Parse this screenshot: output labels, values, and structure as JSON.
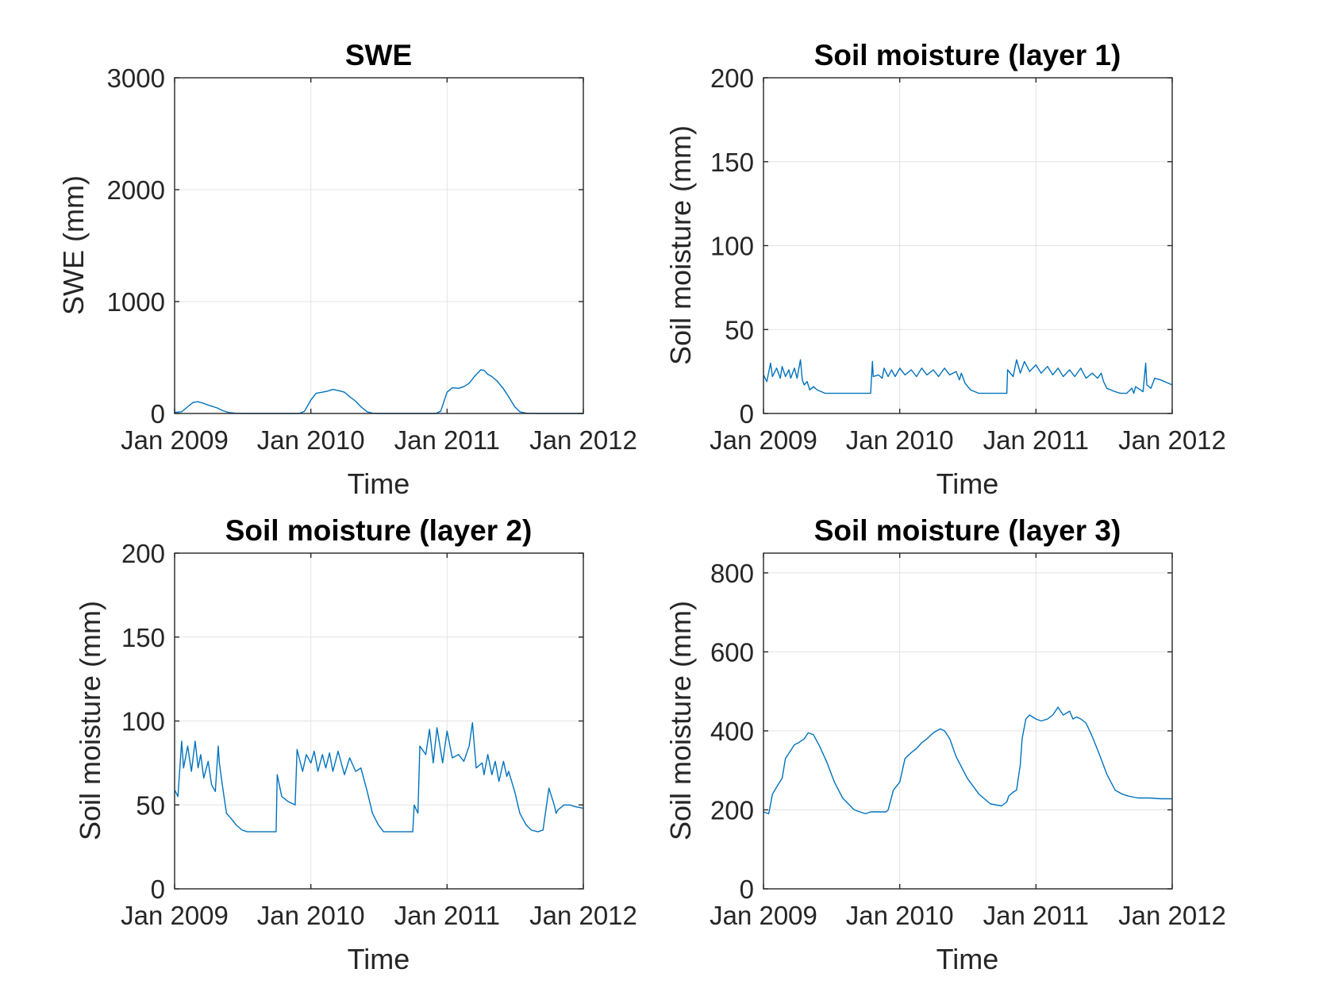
{
  "figure": {
    "background": "#ffffff",
    "line_color": "#0072BD"
  },
  "chart_data": [
    {
      "id": "swe",
      "type": "line",
      "title": "SWE",
      "xlabel": "Time",
      "ylabel": "SWE (mm)",
      "x_type": "date",
      "xlim": [
        "2009-01-01",
        "2012-01-01"
      ],
      "ylim": [
        0,
        3000
      ],
      "xticks": [
        "2009-01-01",
        "2010-01-01",
        "2011-01-01",
        "2012-01-01"
      ],
      "xtick_labels": [
        "Jan 2009",
        "Jan 2010",
        "Jan 2011",
        "Jan 2012"
      ],
      "yticks": [
        0,
        1000,
        2000,
        3000
      ],
      "ytick_labels": [
        "0",
        "1000",
        "2000",
        "3000"
      ],
      "grid": true,
      "series": [
        {
          "color": "#0072BD",
          "x": [
            "2009-01-01",
            "2009-01-20",
            "2009-02-05",
            "2009-02-20",
            "2009-03-05",
            "2009-03-20",
            "2009-04-05",
            "2009-04-25",
            "2009-05-10",
            "2009-05-25",
            "2009-06-10",
            "2009-07-01",
            "2009-09-01",
            "2009-11-01",
            "2009-12-01",
            "2009-12-15",
            "2010-01-01",
            "2010-01-15",
            "2010-02-01",
            "2010-02-15",
            "2010-03-01",
            "2010-03-15",
            "2010-04-01",
            "2010-04-15",
            "2010-05-01",
            "2010-05-15",
            "2010-06-01",
            "2010-06-15",
            "2010-07-01",
            "2010-09-01",
            "2010-11-01",
            "2010-12-01",
            "2010-12-15",
            "2011-01-01",
            "2011-01-15",
            "2011-02-01",
            "2011-02-15",
            "2011-03-01",
            "2011-03-15",
            "2011-04-01",
            "2011-04-10",
            "2011-04-20",
            "2011-05-01",
            "2011-05-15",
            "2011-06-01",
            "2011-06-15",
            "2011-07-01",
            "2011-07-15",
            "2011-08-01",
            "2011-09-01",
            "2011-11-01",
            "2012-01-01"
          ],
          "y": [
            10,
            15,
            60,
            100,
            105,
            90,
            70,
            50,
            25,
            10,
            3,
            0,
            0,
            0,
            0,
            20,
            120,
            180,
            190,
            200,
            215,
            205,
            190,
            150,
            110,
            60,
            15,
            3,
            0,
            0,
            0,
            0,
            20,
            190,
            230,
            225,
            240,
            270,
            330,
            390,
            385,
            350,
            330,
            290,
            220,
            150,
            60,
            15,
            3,
            0,
            0,
            0
          ]
        }
      ]
    },
    {
      "id": "sm1",
      "type": "line",
      "title": "Soil moisture (layer 1)",
      "xlabel": "Time",
      "ylabel": "Soil moisture (mm)",
      "x_type": "date",
      "xlim": [
        "2009-01-01",
        "2012-01-01"
      ],
      "ylim": [
        0,
        200
      ],
      "xticks": [
        "2009-01-01",
        "2010-01-01",
        "2011-01-01",
        "2012-01-01"
      ],
      "xtick_labels": [
        "Jan 2009",
        "Jan 2010",
        "Jan 2011",
        "Jan 2012"
      ],
      "yticks": [
        0,
        50,
        100,
        150,
        200
      ],
      "ytick_labels": [
        "0",
        "50",
        "100",
        "150",
        "200"
      ],
      "grid": true,
      "series": [
        {
          "color": "#0072BD",
          "x": [
            "2009-01-01",
            "2009-01-10",
            "2009-01-20",
            "2009-01-25",
            "2009-02-05",
            "2009-02-15",
            "2009-02-20",
            "2009-03-01",
            "2009-03-10",
            "2009-03-15",
            "2009-03-25",
            "2009-04-01",
            "2009-04-10",
            "2009-04-15",
            "2009-04-20",
            "2009-04-28",
            "2009-05-05",
            "2009-05-15",
            "2009-05-25",
            "2009-06-05",
            "2009-06-15",
            "2009-07-01",
            "2009-07-15",
            "2009-08-01",
            "2009-09-01",
            "2009-10-01",
            "2009-10-15",
            "2009-10-20",
            "2009-10-22",
            "2009-11-05",
            "2009-11-15",
            "2009-11-20",
            "2009-12-01",
            "2009-12-10",
            "2009-12-20",
            "2010-01-01",
            "2010-01-15",
            "2010-02-01",
            "2010-02-15",
            "2010-03-01",
            "2010-03-15",
            "2010-04-01",
            "2010-04-15",
            "2010-05-01",
            "2010-05-15",
            "2010-06-01",
            "2010-06-10",
            "2010-06-15",
            "2010-06-25",
            "2010-07-10",
            "2010-08-01",
            "2010-09-01",
            "2010-10-01",
            "2010-10-15",
            "2010-10-17",
            "2010-11-01",
            "2010-11-10",
            "2010-11-20",
            "2010-12-01",
            "2010-12-15",
            "2011-01-01",
            "2011-01-15",
            "2011-02-01",
            "2011-02-15",
            "2011-03-01",
            "2011-03-15",
            "2011-04-01",
            "2011-04-15",
            "2011-05-01",
            "2011-05-15",
            "2011-06-01",
            "2011-06-15",
            "2011-06-25",
            "2011-07-01",
            "2011-07-10",
            "2011-08-01",
            "2011-08-15",
            "2011-09-01",
            "2011-09-15",
            "2011-09-20",
            "2011-09-25",
            "2011-10-15",
            "2011-10-22",
            "2011-10-25",
            "2011-11-05",
            "2011-11-15",
            "2011-12-01",
            "2012-01-01"
          ],
          "y": [
            23,
            19,
            30,
            22,
            27,
            21,
            28,
            22,
            26,
            21,
            27,
            21,
            32,
            20,
            17,
            19,
            14,
            16,
            14,
            13,
            12,
            12,
            12,
            12,
            12,
            12,
            12,
            31,
            22,
            23,
            21,
            27,
            22,
            26,
            22,
            27,
            23,
            26,
            22,
            27,
            23,
            26,
            22,
            27,
            23,
            25,
            20,
            24,
            18,
            14,
            12,
            12,
            12,
            12,
            26,
            22,
            32,
            24,
            31,
            25,
            29,
            24,
            28,
            23,
            27,
            22,
            26,
            22,
            27,
            21,
            24,
            21,
            24,
            19,
            15,
            13,
            12,
            12,
            15,
            12,
            16,
            13,
            30,
            17,
            15,
            21,
            20,
            17
          ]
        }
      ]
    },
    {
      "id": "sm2",
      "type": "line",
      "title": "Soil moisture (layer 2)",
      "xlabel": "Time",
      "ylabel": "Soil moisture (mm)",
      "x_type": "date",
      "xlim": [
        "2009-01-01",
        "2012-01-01"
      ],
      "ylim": [
        0,
        200
      ],
      "xticks": [
        "2009-01-01",
        "2010-01-01",
        "2011-01-01",
        "2012-01-01"
      ],
      "xtick_labels": [
        "Jan 2009",
        "Jan 2010",
        "Jan 2011",
        "Jan 2012"
      ],
      "yticks": [
        0,
        50,
        100,
        150,
        200
      ],
      "ytick_labels": [
        "0",
        "50",
        "100",
        "150",
        "200"
      ],
      "grid": true,
      "series": [
        {
          "color": "#0072BD",
          "x": [
            "2009-01-01",
            "2009-01-10",
            "2009-01-20",
            "2009-01-25",
            "2009-02-05",
            "2009-02-15",
            "2009-02-25",
            "2009-03-05",
            "2009-03-12",
            "2009-03-20",
            "2009-04-01",
            "2009-04-10",
            "2009-04-20",
            "2009-04-28",
            "2009-05-01",
            "2009-05-10",
            "2009-05-20",
            "2009-06-01",
            "2009-06-15",
            "2009-07-01",
            "2009-07-15",
            "2009-08-01",
            "2009-09-01",
            "2009-09-30",
            "2009-10-03",
            "2009-10-15",
            "2009-11-01",
            "2009-11-20",
            "2009-11-25",
            "2009-12-10",
            "2009-12-20",
            "2010-01-01",
            "2010-01-10",
            "2010-01-20",
            "2010-02-01",
            "2010-02-10",
            "2010-02-20",
            "2010-03-01",
            "2010-03-15",
            "2010-04-01",
            "2010-04-15",
            "2010-05-01",
            "2010-05-15",
            "2010-06-01",
            "2010-06-15",
            "2010-07-01",
            "2010-07-15",
            "2010-08-01",
            "2010-09-01",
            "2010-10-01",
            "2010-10-05",
            "2010-10-15",
            "2010-10-20",
            "2010-11-05",
            "2010-11-15",
            "2010-11-25",
            "2010-12-05",
            "2010-12-20",
            "2011-01-01",
            "2011-01-15",
            "2011-02-01",
            "2011-02-15",
            "2011-03-01",
            "2011-03-10",
            "2011-03-20",
            "2011-04-05",
            "2011-04-10",
            "2011-04-20",
            "2011-05-01",
            "2011-05-10",
            "2011-05-20",
            "2011-06-01",
            "2011-06-10",
            "2011-06-15",
            "2011-07-01",
            "2011-07-15",
            "2011-08-01",
            "2011-08-15",
            "2011-09-01",
            "2011-09-15",
            "2011-10-01",
            "2011-10-15",
            "2011-10-20",
            "2011-10-25",
            "2011-11-10",
            "2011-11-25",
            "2011-12-10",
            "2012-01-01"
          ],
          "y": [
            59,
            55,
            88,
            72,
            85,
            70,
            88,
            72,
            80,
            66,
            76,
            62,
            58,
            85,
            75,
            60,
            45,
            42,
            38,
            35,
            34,
            34,
            34,
            34,
            68,
            55,
            52,
            50,
            83,
            70,
            80,
            75,
            82,
            70,
            80,
            72,
            81,
            70,
            82,
            68,
            78,
            70,
            72,
            58,
            45,
            38,
            34,
            34,
            34,
            34,
            50,
            45,
            85,
            80,
            95,
            75,
            96,
            75,
            94,
            78,
            80,
            76,
            85,
            99,
            72,
            75,
            68,
            80,
            68,
            76,
            64,
            76,
            67,
            70,
            58,
            45,
            38,
            35,
            34,
            35,
            60,
            50,
            45,
            47,
            50,
            50,
            49,
            48
          ]
        }
      ]
    },
    {
      "id": "sm3",
      "type": "line",
      "title": "Soil moisture (layer 3)",
      "xlabel": "Time",
      "ylabel": "Soil moisture (mm)",
      "x_type": "date",
      "xlim": [
        "2009-01-01",
        "2012-01-01"
      ],
      "ylim": [
        0,
        850
      ],
      "xticks": [
        "2009-01-01",
        "2010-01-01",
        "2011-01-01",
        "2012-01-01"
      ],
      "xtick_labels": [
        "Jan 2009",
        "Jan 2010",
        "Jan 2011",
        "Jan 2012"
      ],
      "yticks": [
        0,
        200,
        400,
        600,
        800
      ],
      "ytick_labels": [
        "0",
        "200",
        "400",
        "600",
        "800"
      ],
      "grid": true,
      "series": [
        {
          "color": "#0072BD",
          "x": [
            "2009-01-01",
            "2009-01-15",
            "2009-01-25",
            "2009-02-10",
            "2009-02-20",
            "2009-03-01",
            "2009-03-15",
            "2009-03-25",
            "2009-04-05",
            "2009-04-20",
            "2009-05-01",
            "2009-05-15",
            "2009-06-01",
            "2009-06-20",
            "2009-07-10",
            "2009-08-01",
            "2009-09-01",
            "2009-10-01",
            "2009-10-15",
            "2009-11-01",
            "2009-11-25",
            "2009-12-01",
            "2009-12-15",
            "2010-01-01",
            "2010-01-15",
            "2010-02-01",
            "2010-02-15",
            "2010-03-01",
            "2010-03-15",
            "2010-04-01",
            "2010-04-10",
            "2010-04-20",
            "2010-05-01",
            "2010-05-15",
            "2010-06-01",
            "2010-07-01",
            "2010-08-01",
            "2010-09-01",
            "2010-10-01",
            "2010-10-15",
            "2010-10-20",
            "2010-11-01",
            "2010-11-10",
            "2010-11-20",
            "2010-11-25",
            "2010-12-05",
            "2010-12-15",
            "2011-01-01",
            "2011-01-15",
            "2011-02-01",
            "2011-02-15",
            "2011-03-01",
            "2011-03-15",
            "2011-04-01",
            "2011-04-10",
            "2011-04-20",
            "2011-05-01",
            "2011-05-15",
            "2011-06-01",
            "2011-06-20",
            "2011-07-10",
            "2011-08-01",
            "2011-08-20",
            "2011-09-05",
            "2011-09-20",
            "2011-10-01",
            "2011-10-15",
            "2011-11-01",
            "2011-12-01",
            "2012-01-01"
          ],
          "y": [
            195,
            190,
            240,
            265,
            280,
            330,
            350,
            365,
            370,
            380,
            395,
            390,
            360,
            320,
            270,
            230,
            200,
            190,
            195,
            195,
            195,
            200,
            250,
            270,
            330,
            345,
            355,
            370,
            380,
            395,
            400,
            405,
            400,
            380,
            335,
            280,
            240,
            215,
            210,
            220,
            235,
            245,
            250,
            315,
            380,
            430,
            440,
            430,
            425,
            430,
            440,
            460,
            440,
            450,
            430,
            435,
            430,
            420,
            385,
            340,
            290,
            250,
            240,
            235,
            232,
            230,
            230,
            230,
            228,
            228
          ]
        }
      ]
    }
  ]
}
